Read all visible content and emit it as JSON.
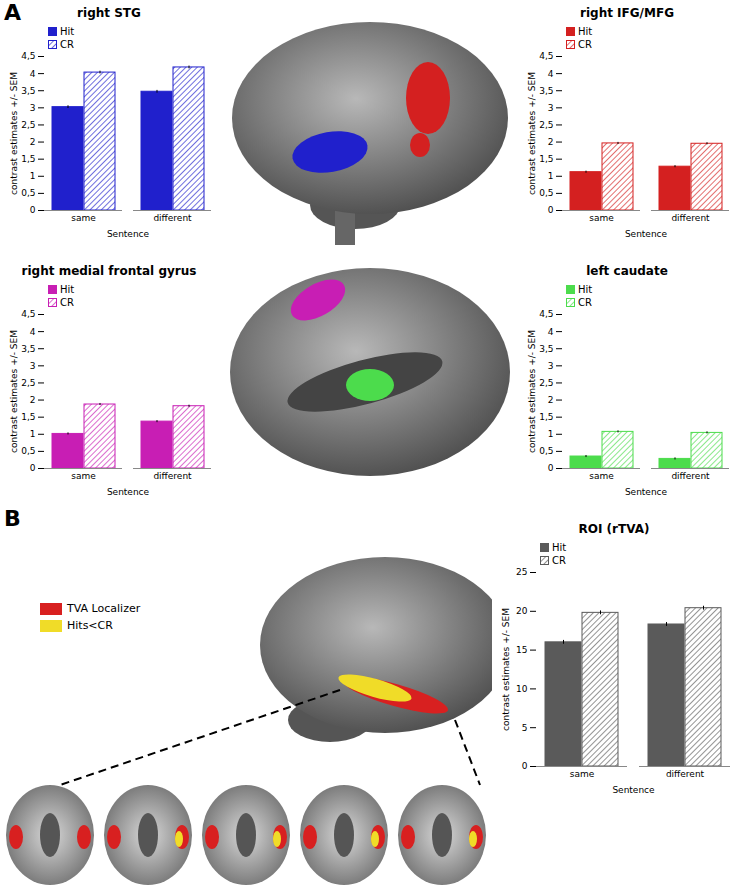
{
  "chart_data": [
    {
      "type": "bar",
      "title": "right STG",
      "categories": [
        "same",
        "different"
      ],
      "x_label": "Sentence",
      "y_label": "contrast estimates +/- SEM",
      "series": [
        {
          "name": "Hit",
          "color": "#2020cc",
          "values": [
            3.02,
            3.47
          ],
          "sem": [
            0.04,
            0.04
          ]
        },
        {
          "name": "CR",
          "color": "#2020cc",
          "values": [
            4.03,
            4.18
          ],
          "sem": [
            0.04,
            0.04
          ]
        }
      ],
      "ylim": [
        0,
        4.5
      ],
      "yticks": [
        0,
        {
          "value": 0.5,
          "label": "0,5"
        },
        1,
        {
          "value": 1.5,
          "label": "1,5"
        },
        2,
        {
          "value": 2.5,
          "label": "2,5"
        },
        3,
        {
          "value": 3.5,
          "label": "3,5"
        },
        4,
        {
          "value": 4.5,
          "label": "4,5"
        }
      ],
      "legend": "top-left"
    },
    {
      "type": "bar",
      "title": "right IFG/MFG",
      "categories": [
        "same",
        "different"
      ],
      "x_label": "Sentence",
      "y_label": "contrast estimates +/- SEM",
      "series": [
        {
          "name": "Hit",
          "color": "#d42020",
          "values": [
            1.12,
            1.28
          ],
          "sem": [
            0.03,
            0.03
          ]
        },
        {
          "name": "CR",
          "color": "#d42020",
          "values": [
            1.96,
            1.95
          ],
          "sem": [
            0.03,
            0.03
          ]
        }
      ],
      "ylim": [
        0,
        4.5
      ],
      "yticks": [
        0,
        {
          "value": 0.5,
          "label": "0,5"
        },
        1,
        {
          "value": 1.5,
          "label": "1,5"
        },
        2,
        {
          "value": 2.5,
          "label": "2,5"
        },
        3,
        {
          "value": 3.5,
          "label": "3,5"
        },
        4,
        {
          "value": 4.5,
          "label": "4,5"
        }
      ],
      "legend": "top-left"
    },
    {
      "type": "bar",
      "title": "right medial frontal gyrus",
      "categories": [
        "same",
        "different"
      ],
      "x_label": "Sentence",
      "y_label": "contrast estimates +/- SEM",
      "series": [
        {
          "name": "Hit",
          "color": "#c81eb4",
          "values": [
            1.01,
            1.37
          ],
          "sem": [
            0.03,
            0.03
          ]
        },
        {
          "name": "CR",
          "color": "#c81eb4",
          "values": [
            1.87,
            1.82
          ],
          "sem": [
            0.03,
            0.03
          ]
        }
      ],
      "ylim": [
        0,
        4.5
      ],
      "yticks": [
        0,
        {
          "value": 0.5,
          "label": "0,5"
        },
        1,
        {
          "value": 1.5,
          "label": "1,5"
        },
        2,
        {
          "value": 2.5,
          "label": "2,5"
        },
        3,
        {
          "value": 3.5,
          "label": "3,5"
        },
        4,
        {
          "value": 4.5,
          "label": "4,5"
        }
      ],
      "legend": "top-left"
    },
    {
      "type": "bar",
      "title": "left caudate",
      "categories": [
        "same",
        "different"
      ],
      "x_label": "Sentence",
      "y_label": "contrast estimates +/- SEM",
      "series": [
        {
          "name": "Hit",
          "color": "#4cdc4c",
          "values": [
            0.35,
            0.28
          ],
          "sem": [
            0.03,
            0.03
          ]
        },
        {
          "name": "CR",
          "color": "#4cdc4c",
          "values": [
            1.07,
            1.04
          ],
          "sem": [
            0.03,
            0.03
          ]
        }
      ],
      "ylim": [
        0,
        4.5
      ],
      "yticks": [
        0,
        {
          "value": 0.5,
          "label": "0,5"
        },
        1,
        {
          "value": 1.5,
          "label": "1,5"
        },
        2,
        {
          "value": 2.5,
          "label": "2,5"
        },
        3,
        {
          "value": 3.5,
          "label": "3,5"
        },
        4,
        {
          "value": 4.5,
          "label": "4,5"
        }
      ],
      "legend": "top-left"
    },
    {
      "type": "bar",
      "title": "ROI (rTVA)",
      "categories": [
        "same",
        "different"
      ],
      "x_label": "Sentence",
      "y_label": "contrast estimates +/- SEM",
      "series": [
        {
          "name": "Hit",
          "color": "#5a5a5a",
          "values": [
            16.0,
            18.3
          ],
          "sem": [
            0.25,
            0.25
          ]
        },
        {
          "name": "CR",
          "color": "#5a5a5a",
          "values": [
            19.8,
            20.4
          ],
          "sem": [
            0.25,
            0.25
          ]
        }
      ],
      "ylim": [
        0,
        25
      ],
      "yticks": [
        0,
        5,
        10,
        15,
        20,
        25
      ],
      "legend": "top-left"
    }
  ],
  "panel_labels": [
    "A",
    "B"
  ],
  "brain_legend": [
    {
      "label": "TVA Localizer",
      "color": "#d82020"
    },
    {
      "label": "Hits<CR",
      "color": "#f0dc28"
    }
  ]
}
